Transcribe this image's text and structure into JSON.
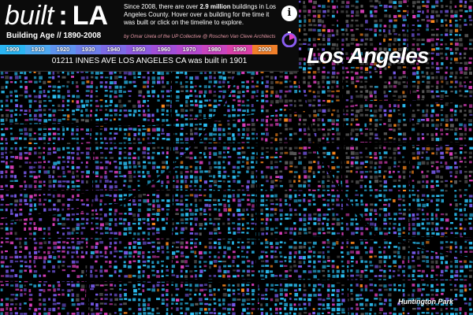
{
  "app": {
    "title_part1": "built",
    "title_sep": ":",
    "title_part2": "LA",
    "subtitle": "Building Age // 1890-2008",
    "description_prefix": "Since 2008, there are over ",
    "description_bold": "2.9 million",
    "description_suffix": " buildings in Los Angeles County. Hover over a building for the time it was built or click on the timeline to explore.",
    "credit": "by Omar Ureta of the UP Collective @ Roschen Van Cleve Architects",
    "info_icon": "info-icon",
    "timer_icon": "timer-icon"
  },
  "timeline": {
    "ticks": [
      "1909",
      "1910",
      "1920",
      "1930",
      "1940",
      "1950",
      "1960",
      "1970",
      "1980",
      "1990",
      "2000"
    ],
    "colors": [
      "#2bb5f2",
      "#4fa9f0",
      "#5f93ee",
      "#6e7fea",
      "#7d6be6",
      "#8d5ae0",
      "#a14fd8",
      "#b449cf",
      "#c845bf",
      "#d941a8",
      "#f07f2a"
    ]
  },
  "status": {
    "text": "01211 INNES AVE LOS ANGELES CA was built in 1901"
  },
  "map": {
    "labels": [
      "Los Angeles",
      "Huntington Park"
    ],
    "colors": {
      "background": "#000000",
      "unknown": "#5a5a5a",
      "old": "#2bc0f5",
      "mid": "#7a5cf0",
      "new": "#e040c0",
      "recent": "#ff8a1e",
      "roads": "#111111"
    }
  }
}
